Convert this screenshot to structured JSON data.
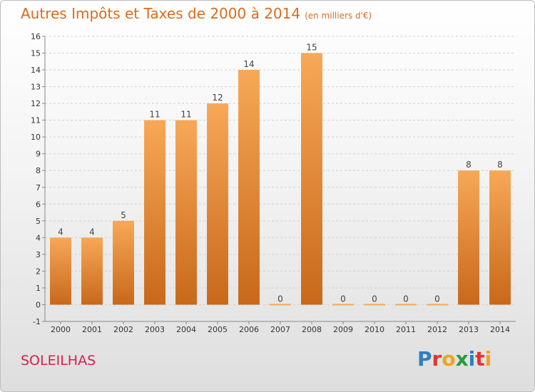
{
  "header": {
    "title": "Autres Impôts et Taxes de 2000 à 2014",
    "subtitle": "(en milliers d'€)"
  },
  "footer": {
    "commune": "SOLEILHAS",
    "logo_letters": [
      "P",
      "r",
      "o",
      "x",
      "i",
      "t",
      "i"
    ],
    "logo_colors": [
      "#2f7fc1",
      "#e6322e",
      "#f2a21b",
      "#2a9b3b",
      "#2f7fc1",
      "#e6322e",
      "#f2a21b"
    ]
  },
  "colors": {
    "bar_light": "#f7a857",
    "bar_dark": "#c8681a",
    "title": "#d96b1e",
    "commune": "#d1224f"
  },
  "chart_data": {
    "type": "bar",
    "title": "Autres Impôts et Taxes de 2000 à 2014",
    "subtitle": "(en milliers d'€)",
    "categories": [
      "2000",
      "2001",
      "2002",
      "2003",
      "2004",
      "2005",
      "2006",
      "2007",
      "2008",
      "2009",
      "2010",
      "2011",
      "2012",
      "2013",
      "2014"
    ],
    "values": [
      4,
      4,
      5,
      11,
      11,
      12,
      14,
      0,
      15,
      0,
      0,
      0,
      0,
      8,
      8
    ],
    "ylim": [
      -1,
      16
    ],
    "yticks": [
      -1,
      0,
      1,
      2,
      3,
      4,
      5,
      6,
      7,
      8,
      9,
      10,
      11,
      12,
      13,
      14,
      15,
      16
    ],
    "grid": true,
    "data_labels": true
  }
}
